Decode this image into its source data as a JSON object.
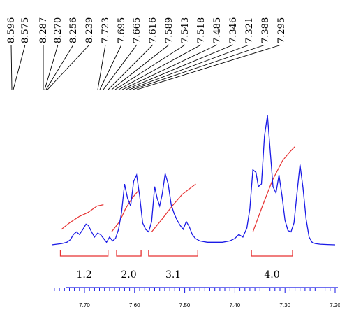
{
  "chart_data": {
    "type": "line",
    "title": "",
    "xlabel": "",
    "ylabel": "",
    "x_reversed": true,
    "xlim": [
      7.2,
      7.77
    ],
    "x_ticks": [
      "7.70",
      "7.60",
      "7.50",
      "7.40",
      "7.30",
      "7.20"
    ],
    "peak_labels": [
      "8.596",
      "8.575",
      "8.287",
      "8.270",
      "8.256",
      "8.239",
      "7.723",
      "7.695",
      "7.665",
      "7.616",
      "7.589",
      "7.543",
      "7.518",
      "7.485",
      "7.346",
      "7.321",
      "7.388",
      "7.295"
    ],
    "integrals": [
      {
        "label": "1.2",
        "from": 7.748,
        "to": 7.653
      },
      {
        "label": "2.0",
        "from": 7.636,
        "to": 7.587
      },
      {
        "label": "3.1",
        "from": 7.572,
        "to": 7.474
      },
      {
        "label": "4.0",
        "from": 7.367,
        "to": 7.285
      }
    ],
    "series": [
      {
        "color": "#1a1ae6",
        "x": [
          7.765,
          7.745,
          7.735,
          7.728,
          7.722,
          7.716,
          7.71,
          7.703,
          7.697,
          7.692,
          7.686,
          7.68,
          7.674,
          7.668,
          7.662,
          7.656,
          7.65,
          7.644,
          7.638,
          7.632,
          7.626,
          7.62,
          7.614,
          7.608,
          7.602,
          7.596,
          7.59,
          7.584,
          7.578,
          7.572,
          7.566,
          7.56,
          7.555,
          7.55,
          7.545,
          7.539,
          7.533,
          7.527,
          7.521,
          7.515,
          7.509,
          7.503,
          7.497,
          7.491,
          7.485,
          7.479,
          7.47,
          7.455,
          7.44,
          7.425,
          7.41,
          7.4,
          7.392,
          7.384,
          7.376,
          7.37,
          7.364,
          7.358,
          7.353,
          7.347,
          7.341,
          7.335,
          7.33,
          7.324,
          7.318,
          7.312,
          7.306,
          7.3,
          7.294,
          7.288,
          7.282,
          7.276,
          7.27,
          7.264,
          7.258,
          7.252,
          7.246,
          7.24,
          7.23,
          7.215,
          7.2
        ],
        "values": [
          0,
          0.01,
          0.02,
          0.04,
          0.08,
          0.1,
          0.08,
          0.12,
          0.16,
          0.15,
          0.1,
          0.06,
          0.09,
          0.08,
          0.05,
          0.02,
          0.06,
          0.03,
          0.05,
          0.12,
          0.25,
          0.47,
          0.36,
          0.3,
          0.49,
          0.54,
          0.38,
          0.17,
          0.12,
          0.1,
          0.18,
          0.45,
          0.36,
          0.3,
          0.39,
          0.55,
          0.47,
          0.31,
          0.24,
          0.19,
          0.15,
          0.12,
          0.18,
          0.14,
          0.08,
          0.05,
          0.03,
          0.02,
          0.02,
          0.02,
          0.03,
          0.05,
          0.08,
          0.06,
          0.13,
          0.28,
          0.58,
          0.56,
          0.45,
          0.47,
          0.84,
          1.0,
          0.75,
          0.45,
          0.4,
          0.54,
          0.38,
          0.19,
          0.11,
          0.1,
          0.17,
          0.4,
          0.62,
          0.44,
          0.2,
          0.06,
          0.02,
          0.01,
          0.005,
          0.002,
          0
        ]
      },
      {
        "color": "#e63232",
        "segments": [
          {
            "x": [
              7.746,
              7.73,
              7.71,
              7.693,
              7.675,
              7.662
            ],
            "values": [
              0.12,
              0.17,
              0.22,
              0.25,
              0.3,
              0.31
            ]
          },
          {
            "x": [
              7.646,
              7.63,
              7.618,
              7.605,
              7.592
            ],
            "values": [
              0.1,
              0.18,
              0.28,
              0.36,
              0.42
            ]
          },
          {
            "x": [
              7.566,
              7.545,
              7.525,
              7.505,
              7.485,
              7.478
            ],
            "values": [
              0.1,
              0.2,
              0.3,
              0.39,
              0.45,
              0.47
            ]
          },
          {
            "x": [
              7.364,
              7.345,
              7.325,
              7.305,
              7.29,
              7.28
            ],
            "values": [
              0.1,
              0.3,
              0.5,
              0.65,
              0.72,
              0.76
            ]
          }
        ]
      }
    ]
  }
}
